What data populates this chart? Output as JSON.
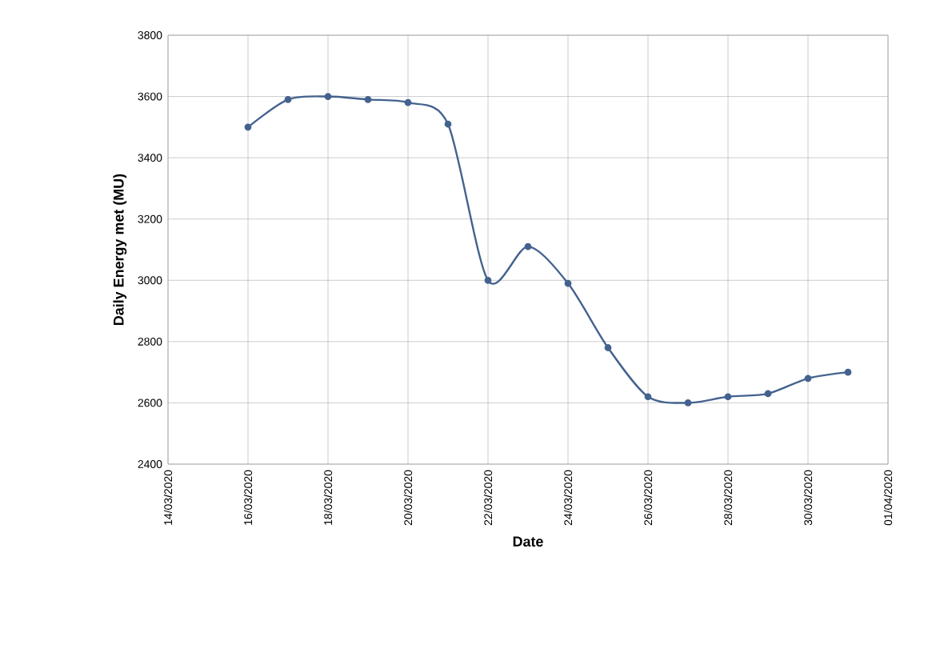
{
  "chart_data": {
    "type": "line",
    "xlabel": "Date",
    "ylabel": "Daily Energy met (MU)",
    "x": [
      "2020-03-16",
      "2020-03-17",
      "2020-03-18",
      "2020-03-19",
      "2020-03-20",
      "2020-03-21",
      "2020-03-22",
      "2020-03-23",
      "2020-03-24",
      "2020-03-25",
      "2020-03-26",
      "2020-03-27",
      "2020-03-28",
      "2020-03-29",
      "2020-03-30",
      "2020-03-31"
    ],
    "series": [
      {
        "color": "#44628f",
        "values": [
          3500,
          3590,
          3600,
          3590,
          3580,
          3510,
          3000,
          3110,
          2990,
          2780,
          2620,
          2600,
          2620,
          2630,
          2680,
          2700
        ]
      }
    ],
    "xlim": [
      "2020-03-14",
      "2020-04-01"
    ],
    "xticks": [
      {
        "value": "2020-03-14",
        "label": "14/03/2020"
      },
      {
        "value": "2020-03-16",
        "label": "16/03/2020"
      },
      {
        "value": "2020-03-18",
        "label": "18/03/2020"
      },
      {
        "value": "2020-03-20",
        "label": "20/03/2020"
      },
      {
        "value": "2020-03-22",
        "label": "22/03/2020"
      },
      {
        "value": "2020-03-24",
        "label": "24/03/2020"
      },
      {
        "value": "2020-03-26",
        "label": "26/03/2020"
      },
      {
        "value": "2020-03-28",
        "label": "28/03/2020"
      },
      {
        "value": "2020-03-30",
        "label": "30/03/2020"
      },
      {
        "value": "2020-04-01",
        "label": "01/04/2020"
      }
    ],
    "ylim": [
      2400,
      3800
    ],
    "yticks": [
      2400,
      2600,
      2800,
      3000,
      3200,
      3400,
      3600,
      3800
    ],
    "grid": true,
    "marker": "circle",
    "line_style": "solid"
  }
}
